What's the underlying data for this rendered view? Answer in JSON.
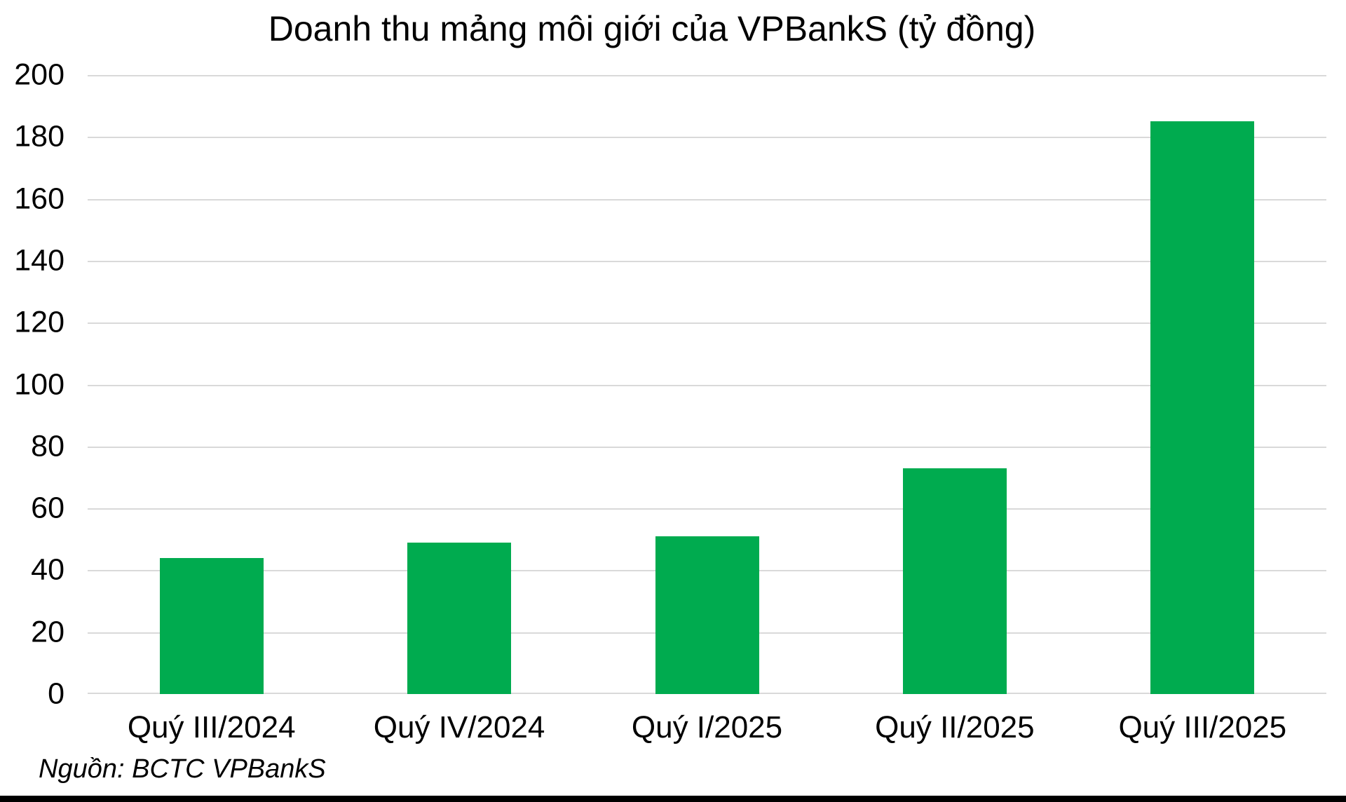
{
  "chart_data": {
    "type": "bar",
    "title": "Doanh thu mảng môi giới của VPBankS (tỷ đồng)",
    "categories": [
      "Quý III/2024",
      "Quý IV/2024",
      "Quý I/2025",
      "Quý II/2025",
      "Quý III/2025"
    ],
    "values": [
      44,
      49,
      51,
      73,
      185
    ],
    "xlabel": "",
    "ylabel": "",
    "ylim": [
      0,
      200
    ],
    "yticks": [
      0,
      20,
      40,
      60,
      80,
      100,
      120,
      140,
      160,
      180,
      200
    ],
    "grid": "horizontal",
    "legend_position": "none",
    "source_note": "Nguồn: BCTC VPBankS",
    "colors": {
      "bar": "#00AB4F",
      "gridline": "#D9D9D9",
      "axis_line": "#D9D9D9",
      "text": "#000000",
      "bottom_strip": "#000000"
    }
  }
}
